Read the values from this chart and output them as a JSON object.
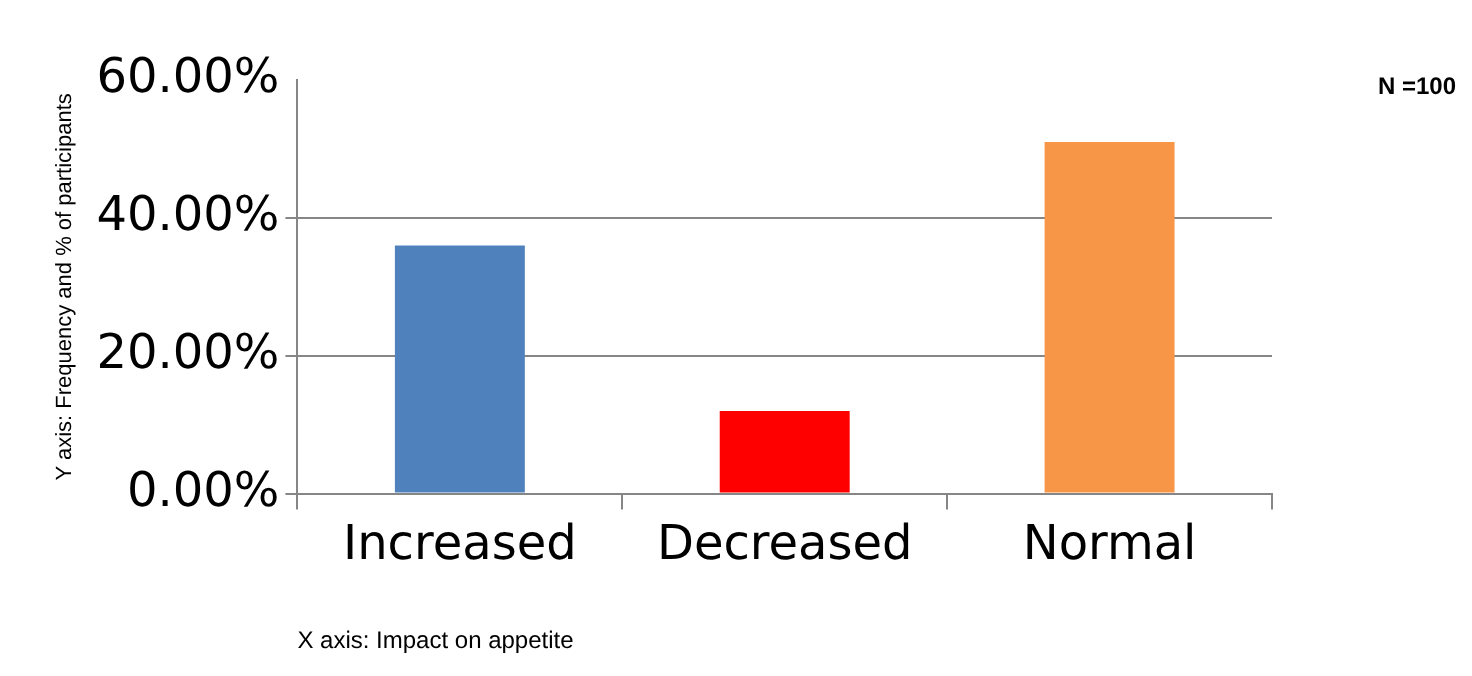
{
  "chart_data": {
    "type": "bar",
    "categories": [
      "Increased",
      "Decreased",
      "Normal"
    ],
    "values": [
      36,
      12,
      51
    ],
    "colors": [
      "#4f81bd",
      "#ff0000",
      "#f79646"
    ],
    "xlabel": "X axis: Impact on appetite",
    "ylabel": "Y axis: Frequency and % of participants",
    "ylim": [
      0,
      60
    ],
    "yticks": [
      {
        "value": 0,
        "label": "0.00%"
      },
      {
        "value": 20,
        "label": "20.00%"
      },
      {
        "value": 40,
        "label": "40.00%"
      },
      {
        "value": 60,
        "label": "60.00%"
      }
    ],
    "grid": "y",
    "legend": false,
    "annotations": [
      "N =100"
    ]
  }
}
